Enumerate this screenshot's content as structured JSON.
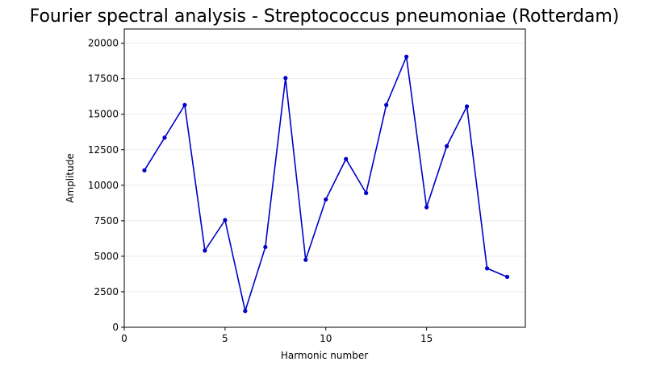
{
  "chart_data": {
    "type": "line",
    "title": "Fourier spectral analysis - Streptococcus pneumoniae (Rotterdam)",
    "xlabel": "Harmonic number",
    "ylabel": "Amplitude",
    "xlim": [
      0,
      19.9
    ],
    "ylim": [
      0,
      21000
    ],
    "xticks": [
      0,
      5,
      10,
      15
    ],
    "yticks": [
      0,
      2500,
      5000,
      7500,
      10000,
      12500,
      15000,
      17500,
      20000
    ],
    "xtick_labels": [
      "0",
      "5",
      "10",
      "15"
    ],
    "ytick_labels": [
      "0",
      "2500",
      "5000",
      "7500",
      "10000",
      "12500",
      "15000",
      "17500",
      "20000"
    ],
    "grid": "horizontal",
    "color": "#0000c8",
    "series": [
      {
        "x": [
          1,
          2,
          3,
          4,
          5,
          6,
          7,
          8,
          9,
          10,
          11,
          12,
          13,
          14,
          15,
          16,
          17,
          18,
          19
        ],
        "values": [
          11050,
          13350,
          15650,
          5400,
          7550,
          1150,
          5650,
          17550,
          4750,
          9000,
          11850,
          9450,
          15650,
          19050,
          8450,
          12750,
          15550,
          4150,
          3550
        ]
      }
    ]
  }
}
